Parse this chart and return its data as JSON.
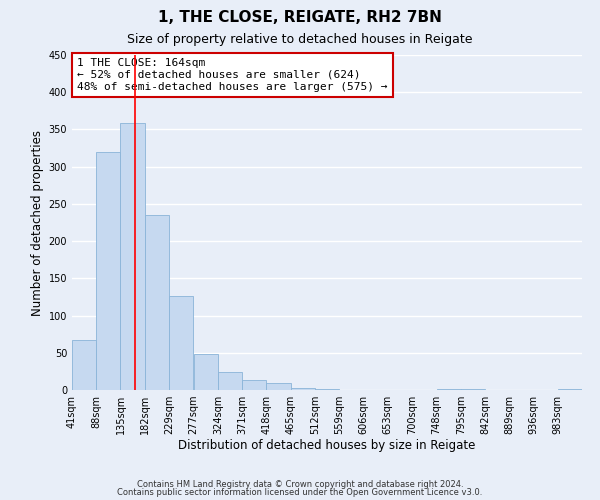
{
  "title": "1, THE CLOSE, REIGATE, RH2 7BN",
  "subtitle": "Size of property relative to detached houses in Reigate",
  "xlabel": "Distribution of detached houses by size in Reigate",
  "ylabel": "Number of detached properties",
  "bar_values": [
    67,
    320,
    358,
    235,
    126,
    49,
    24,
    14,
    9,
    3,
    1,
    0,
    0,
    0,
    0,
    1,
    2,
    0,
    0,
    0,
    2
  ],
  "bin_labels": [
    "41sqm",
    "88sqm",
    "135sqm",
    "182sqm",
    "229sqm",
    "277sqm",
    "324sqm",
    "371sqm",
    "418sqm",
    "465sqm",
    "512sqm",
    "559sqm",
    "606sqm",
    "653sqm",
    "700sqm",
    "748sqm",
    "795sqm",
    "842sqm",
    "889sqm",
    "936sqm",
    "983sqm"
  ],
  "bin_edges": [
    41,
    88,
    135,
    182,
    229,
    277,
    324,
    371,
    418,
    465,
    512,
    559,
    606,
    653,
    700,
    748,
    795,
    842,
    889,
    936,
    983
  ],
  "bar_color": "#c6d9f0",
  "bar_edge_color": "#8ab4d8",
  "red_line_x": 164,
  "ylim": [
    0,
    450
  ],
  "annotation_text": "1 THE CLOSE: 164sqm\n← 52% of detached houses are smaller (624)\n48% of semi-detached houses are larger (575) →",
  "annotation_box_color": "#ffffff",
  "annotation_box_edge": "#cc0000",
  "footer_line1": "Contains HM Land Registry data © Crown copyright and database right 2024.",
  "footer_line2": "Contains public sector information licensed under the Open Government Licence v3.0.",
  "background_color": "#e8eef8",
  "grid_color": "#ffffff",
  "title_fontsize": 11,
  "subtitle_fontsize": 9,
  "axis_label_fontsize": 8.5,
  "tick_fontsize": 7,
  "footer_fontsize": 6,
  "annotation_fontsize": 8
}
